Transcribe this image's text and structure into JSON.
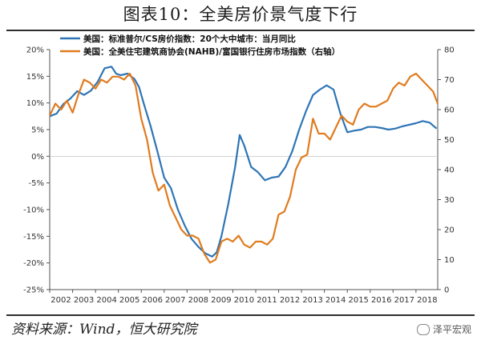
{
  "title": "图表10：全美房价景气度下行",
  "source": "资料来源：Wind，恒大研究院",
  "brand": "泽平宏观",
  "colors": {
    "series1": "#2E75B6",
    "series2": "#E07B1F",
    "axis": "#555555"
  },
  "chart_data": {
    "type": "line",
    "x_ticks": [
      "2002",
      "2003",
      "2004",
      "2005",
      "2006",
      "2007",
      "2008",
      "2009",
      "2010",
      "2011",
      "2012",
      "2013",
      "2014",
      "2015",
      "2016",
      "2017",
      "2018"
    ],
    "xlim": [
      2002.0,
      2018.95
    ],
    "y_left": {
      "ticks": [
        "20%",
        "15%",
        "10%",
        "5%",
        "0%",
        "-5%",
        "-10%",
        "-15%",
        "-20%",
        "-25%"
      ],
      "lim": [
        -25,
        20
      ]
    },
    "y_right": {
      "ticks": [
        "80",
        "70",
        "60",
        "50",
        "40",
        "30",
        "20",
        "10",
        "0"
      ],
      "lim": [
        0,
        80
      ]
    },
    "legend_position": "top-left",
    "series": [
      {
        "name": "美国：标准普尔/CS房价指数：20个大中城市：当月同比",
        "axis": "left",
        "x": [
          2002.0,
          2002.3,
          2002.6,
          2002.9,
          2003.2,
          2003.5,
          2003.8,
          2004.1,
          2004.4,
          2004.7,
          2004.9,
          2005.1,
          2005.4,
          2005.7,
          2005.9,
          2006.1,
          2006.4,
          2006.7,
          2007.0,
          2007.3,
          2007.6,
          2007.9,
          2008.2,
          2008.5,
          2008.8,
          2009.1,
          2009.3,
          2009.5,
          2009.8,
          2010.1,
          2010.3,
          2010.5,
          2010.8,
          2011.1,
          2011.4,
          2011.7,
          2012.0,
          2012.3,
          2012.6,
          2012.9,
          2013.2,
          2013.5,
          2013.8,
          2014.1,
          2014.4,
          2014.7,
          2015.0,
          2015.3,
          2015.6,
          2015.9,
          2016.2,
          2016.5,
          2016.8,
          2017.1,
          2017.4,
          2017.7,
          2018.0,
          2018.3,
          2018.6,
          2018.9
        ],
        "y": [
          7.5,
          8.0,
          9.8,
          10.8,
          12.2,
          11.5,
          12.3,
          14.0,
          16.5,
          16.8,
          15.5,
          15.2,
          15.5,
          14.5,
          13.0,
          10.0,
          5.8,
          1.0,
          -4.0,
          -6.0,
          -10.0,
          -13.0,
          -15.5,
          -17.0,
          -18.2,
          -18.8,
          -18.0,
          -15.0,
          -9.0,
          -2.0,
          4.0,
          2.0,
          -2.0,
          -3.0,
          -4.5,
          -4.0,
          -3.8,
          -2.0,
          1.0,
          5.0,
          8.5,
          11.5,
          12.5,
          13.3,
          12.5,
          8.0,
          4.5,
          4.8,
          5.0,
          5.5,
          5.5,
          5.3,
          5.0,
          5.2,
          5.6,
          5.9,
          6.2,
          6.6,
          6.3,
          5.2
        ]
      },
      {
        "name": "美国：全美住宅建筑商协会(NAHB)/富国银行住房市场指数（右轴）",
        "axis": "right",
        "x": [
          2002.0,
          2002.25,
          2002.5,
          2002.75,
          2003.0,
          2003.25,
          2003.5,
          2003.75,
          2004.0,
          2004.25,
          2004.5,
          2004.75,
          2005.0,
          2005.25,
          2005.5,
          2005.75,
          2006.0,
          2006.25,
          2006.5,
          2006.75,
          2007.0,
          2007.25,
          2007.5,
          2007.75,
          2008.0,
          2008.25,
          2008.5,
          2008.75,
          2009.0,
          2009.25,
          2009.5,
          2009.75,
          2010.0,
          2010.25,
          2010.5,
          2010.75,
          2011.0,
          2011.25,
          2011.5,
          2011.75,
          2012.0,
          2012.25,
          2012.5,
          2012.75,
          2013.0,
          2013.25,
          2013.5,
          2013.75,
          2014.0,
          2014.25,
          2014.5,
          2014.75,
          2015.0,
          2015.25,
          2015.5,
          2015.75,
          2016.0,
          2016.25,
          2016.5,
          2016.75,
          2017.0,
          2017.25,
          2017.5,
          2017.75,
          2018.0,
          2018.25,
          2018.5,
          2018.75,
          2018.95
        ],
        "y": [
          58,
          62,
          60,
          63,
          59,
          65,
          70,
          69,
          67,
          70,
          69,
          71,
          71,
          70,
          72,
          68,
          57,
          50,
          39,
          33,
          35,
          28,
          24,
          20,
          18,
          18,
          17,
          12,
          9,
          10,
          16,
          17,
          16,
          18,
          15,
          14,
          16,
          16,
          15,
          17,
          25,
          26,
          31,
          40,
          44,
          45,
          57,
          52,
          52,
          50,
          54,
          58,
          56,
          55,
          60,
          62,
          61,
          61,
          62,
          63,
          67,
          69,
          68,
          71,
          72,
          70,
          68,
          66,
          62
        ]
      }
    ]
  }
}
